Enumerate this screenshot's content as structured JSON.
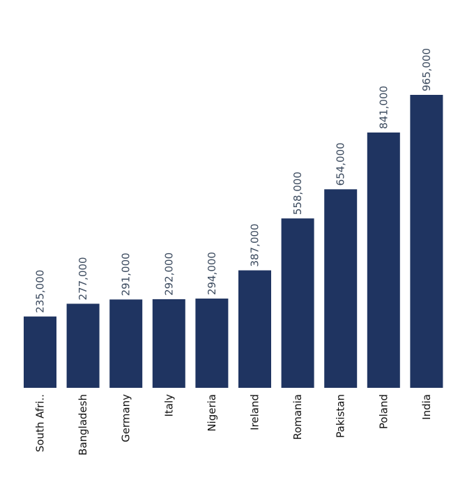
{
  "chart_data": {
    "type": "bar",
    "categories": [
      "South Afri..",
      "Bangladesh",
      "Germany",
      "Italy",
      "Nigeria",
      "Ireland",
      "Romania",
      "Pakistan",
      "Poland",
      "India"
    ],
    "values": [
      235000,
      277000,
      291000,
      292000,
      294000,
      387000,
      558000,
      654000,
      841000,
      965000
    ],
    "value_labels": [
      "235,000",
      "277,000",
      "291,000",
      "292,000",
      "294,000",
      "387,000",
      "558,000",
      "654,000",
      "841,000",
      "965,000"
    ],
    "color": "#1f3461"
  }
}
